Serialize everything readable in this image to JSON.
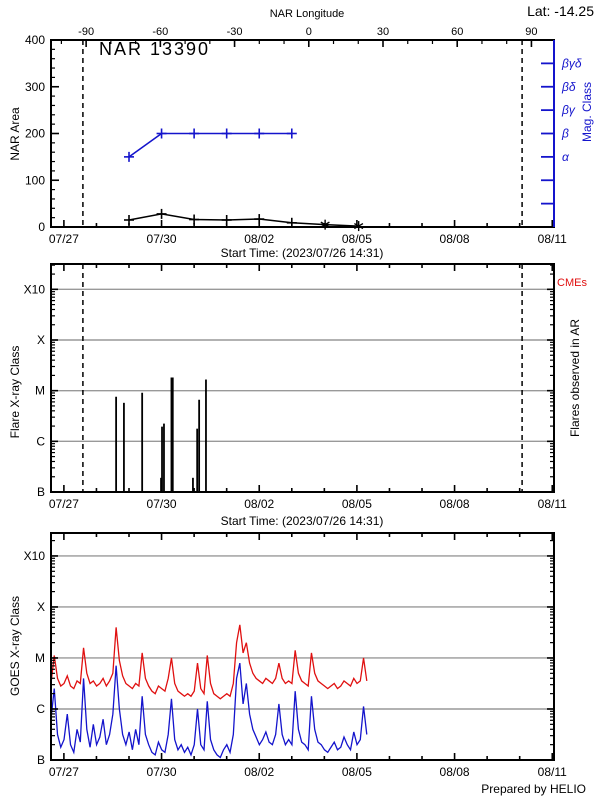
{
  "header": {
    "lat_label": "Lat: -14.25"
  },
  "footer": {
    "credit": "Prepared by HELIO"
  },
  "colors": {
    "blue": "#1414cc",
    "red": "#e01010",
    "grid": "#999999",
    "black": "#000000",
    "background": "#ffffff"
  },
  "chart_data": [
    {
      "type": "line",
      "panel": "nar-area-and-mag-class",
      "title": "NAR 13390",
      "xlabel": "Start Time: (2023/07/26 14:31)",
      "x_start": "2023/07/26 14:31",
      "x_range_days": [
        0,
        15.45
      ],
      "x_major_ticks": [
        {
          "t": 0.396,
          "label": "07/27"
        },
        {
          "t": 3.396,
          "label": "07/30"
        },
        {
          "t": 6.396,
          "label": "08/02"
        },
        {
          "t": 9.396,
          "label": "08/05"
        },
        {
          "t": 12.396,
          "label": "08/08"
        },
        {
          "t": 15.396,
          "label": "08/11"
        }
      ],
      "x_minor_interval_days": 1,
      "top_axis": {
        "label": "NAR Longitude",
        "major_ticks_deg": [
          -90,
          -60,
          -30,
          0,
          30,
          60,
          90
        ],
        "minor_step_deg": 10,
        "lon_at_start_deg": -104.2,
        "deg_per_day": 13.16
      },
      "y_left": {
        "label": "NAR Area",
        "range": [
          0,
          400
        ],
        "major_ticks": [
          0,
          100,
          200,
          300,
          400
        ],
        "minor_step": 20
      },
      "y_right": {
        "label": "Mag. Class",
        "levels": 8,
        "labels": [
          {
            "level": 3,
            "text": "α"
          },
          {
            "level": 4,
            "text": "β"
          },
          {
            "level": 5,
            "text": "βγ"
          },
          {
            "level": 6,
            "text": "βδ"
          },
          {
            "level": 7,
            "text": "βγδ"
          }
        ]
      },
      "limb_crossing_lines_days": [
        0.98,
        14.47
      ],
      "series": [
        {
          "name": "nar-area",
          "axis": "left",
          "marker": "plus",
          "color": "#000000",
          "points": [
            [
              2.396,
              15
            ],
            [
              3.396,
              28
            ],
            [
              4.396,
              16
            ],
            [
              5.396,
              15
            ],
            [
              6.396,
              17
            ],
            [
              7.396,
              9
            ]
          ]
        },
        {
          "name": "nar-area-final",
          "axis": "left",
          "marker": "star",
          "color": "#000000",
          "points": [
            [
              8.42,
              5
            ],
            [
              9.45,
              2
            ]
          ]
        },
        {
          "name": "mag-class",
          "axis": "right",
          "marker": "plus",
          "color": "#1414cc",
          "points": [
            [
              2.396,
              3
            ],
            [
              3.396,
              4
            ],
            [
              4.396,
              4
            ],
            [
              5.396,
              4
            ],
            [
              6.396,
              4
            ],
            [
              7.396,
              4
            ]
          ]
        }
      ]
    },
    {
      "type": "bar",
      "panel": "flares-in-ar",
      "ylabel": "Flare X-ray Class",
      "right_label": "Flares observed in AR",
      "corner_label": "CMEs",
      "xlabel": "Start Time: (2023/07/26 14:31)",
      "y_decades": [
        "B",
        "C",
        "M",
        "X",
        "X10"
      ],
      "y_top_decades": 4.5,
      "limb_crossing_lines_days": [
        0.98,
        14.47
      ],
      "flares": [
        {
          "t": 2.0,
          "mag": 1.88,
          "class": "C7.6"
        },
        {
          "t": 2.24,
          "mag": 1.76,
          "class": "C5.8"
        },
        {
          "t": 2.8,
          "mag": 1.96,
          "class": "C9.1"
        },
        {
          "t": 3.38,
          "mag": 0.28,
          "class": "B1.9"
        },
        {
          "t": 3.41,
          "mag": 1.29,
          "class": "C1.9"
        },
        {
          "t": 3.47,
          "mag": 1.35,
          "class": "C2.2"
        },
        {
          "t": 3.7,
          "mag": 2.26,
          "class": "M1.8"
        },
        {
          "t": 3.74,
          "mag": 2.26,
          "class": "M1.8"
        },
        {
          "t": 4.36,
          "mag": 0.28,
          "class": "B1.9"
        },
        {
          "t": 4.49,
          "mag": 1.25,
          "class": "C1.8"
        },
        {
          "t": 4.55,
          "mag": 1.82,
          "class": "C6.6"
        },
        {
          "t": 4.76,
          "mag": 2.22,
          "class": "M1.7"
        }
      ]
    },
    {
      "type": "line",
      "panel": "goes-xray-flux",
      "ylabel": "GOES X-ray Class",
      "y_decades": [
        "B",
        "C",
        "M",
        "X",
        "X10"
      ],
      "y_top_decades": 4.45,
      "sample_interval_days": 0.1,
      "series": [
        {
          "name": "goes-long-channel",
          "color": "#e01010",
          "units": "decades above B",
          "values": [
            1.5,
            2.05,
            1.6,
            1.45,
            1.5,
            1.65,
            1.45,
            1.4,
            1.55,
            1.5,
            2.2,
            1.7,
            1.5,
            1.55,
            1.45,
            1.5,
            1.6,
            1.45,
            1.55,
            1.7,
            2.6,
            1.95,
            1.65,
            1.5,
            1.45,
            1.4,
            1.5,
            1.45,
            2.1,
            1.6,
            1.45,
            1.35,
            1.3,
            1.45,
            1.4,
            1.35,
            1.6,
            2.0,
            1.5,
            1.35,
            1.3,
            1.25,
            1.3,
            1.25,
            1.35,
            1.9,
            1.4,
            1.3,
            2.05,
            1.5,
            1.3,
            1.25,
            1.2,
            1.25,
            1.3,
            1.25,
            1.5,
            2.3,
            2.65,
            2.1,
            2.3,
            1.9,
            1.7,
            1.6,
            1.55,
            1.5,
            1.6,
            1.55,
            1.5,
            1.6,
            1.9,
            1.6,
            1.5,
            1.55,
            1.5,
            2.15,
            1.7,
            1.55,
            1.5,
            1.45,
            2.1,
            1.7,
            1.55,
            1.5,
            1.45,
            1.4,
            1.45,
            1.5,
            1.4,
            1.45,
            1.55,
            1.5,
            1.45,
            1.6,
            1.5,
            1.55,
            2.0,
            1.55
          ]
        },
        {
          "name": "goes-short-channel",
          "color": "#1414cc",
          "units": "decades above B",
          "values": [
            0.8,
            1.4,
            0.5,
            0.25,
            0.4,
            0.9,
            0.3,
            0.15,
            0.6,
            0.35,
            1.6,
            0.6,
            0.25,
            0.7,
            0.3,
            0.45,
            0.8,
            0.3,
            0.5,
            0.9,
            1.85,
            1.0,
            0.5,
            0.3,
            0.55,
            0.2,
            0.6,
            0.3,
            1.25,
            0.5,
            0.3,
            0.15,
            0.1,
            0.35,
            0.2,
            0.15,
            0.5,
            1.2,
            0.4,
            0.2,
            0.3,
            0.15,
            0.25,
            0.1,
            0.3,
            1.0,
            0.3,
            0.2,
            1.15,
            0.4,
            0.2,
            0.1,
            0.05,
            0.2,
            0.3,
            0.15,
            0.5,
            1.6,
            1.9,
            1.1,
            1.5,
            0.9,
            0.6,
            0.45,
            0.3,
            0.4,
            0.55,
            0.35,
            0.3,
            0.5,
            1.1,
            0.5,
            0.3,
            0.4,
            0.3,
            1.35,
            0.6,
            0.35,
            0.3,
            0.2,
            1.25,
            0.6,
            0.35,
            0.3,
            0.2,
            0.15,
            0.25,
            0.35,
            0.2,
            0.25,
            0.45,
            0.3,
            0.2,
            0.55,
            0.3,
            0.4,
            1.05,
            0.5
          ]
        }
      ]
    }
  ]
}
